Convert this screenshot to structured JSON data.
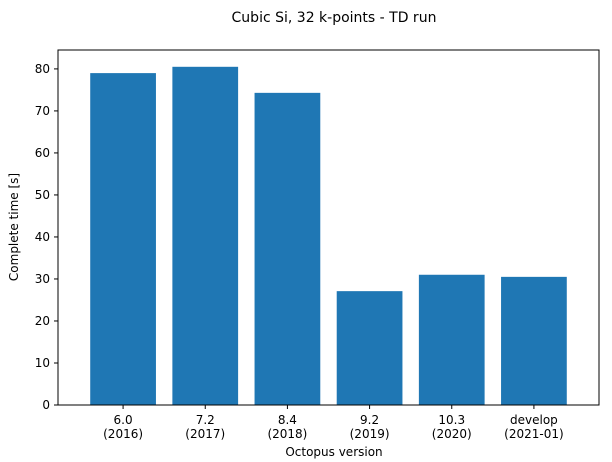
{
  "chart_data": {
    "type": "bar",
    "title": "Cubic Si, 32 k-points - TD run",
    "xlabel": "Octopus version",
    "ylabel": "Complete time [s]",
    "categories": [
      [
        "6.0",
        "(2016)"
      ],
      [
        "7.2",
        "(2017)"
      ],
      [
        "8.4",
        "(2018)"
      ],
      [
        "9.2",
        "(2019)"
      ],
      [
        "10.3",
        "(2020)"
      ],
      [
        "develop",
        "(2021-01)"
      ]
    ],
    "values": [
      79,
      80.5,
      74.3,
      27.1,
      31.0,
      30.5
    ],
    "ylim": [
      0,
      84.5
    ],
    "yticks": [
      0,
      10,
      20,
      30,
      40,
      50,
      60,
      70,
      80
    ],
    "bar_color": "#1f77b4",
    "grid": false,
    "legend": "none"
  }
}
